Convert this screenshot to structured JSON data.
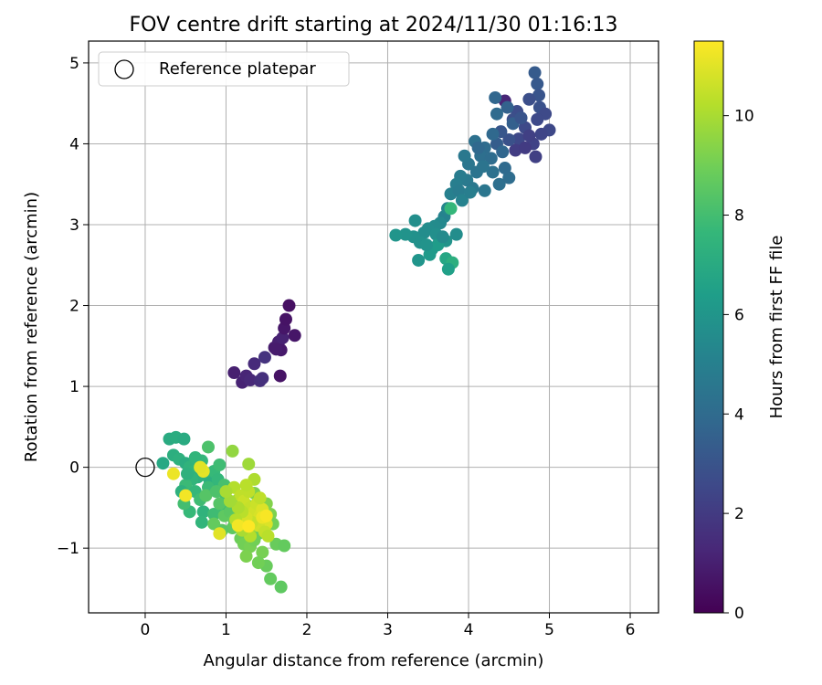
{
  "chart_data": {
    "type": "scatter",
    "title": "FOV centre drift starting at 2024/11/30 01:16:13",
    "xlabel": "Angular distance from reference (arcmin)",
    "ylabel": "Rotation from reference (arcmin)",
    "xlim": [
      -0.7,
      6.35
    ],
    "ylim": [
      -1.8,
      5.27
    ],
    "xticks": [
      "0",
      "1",
      "2",
      "3",
      "4",
      "5",
      "6"
    ],
    "yticks": [
      "−1",
      "0",
      "1",
      "2",
      "3",
      "4",
      "5"
    ],
    "grid": true,
    "legend": {
      "placement": "top-left",
      "entries": [
        "Reference platepar"
      ]
    },
    "reference_point": {
      "label": "Reference platepar",
      "x": 0,
      "y": 0
    },
    "colorbar": {
      "label": "Hours from first FF file",
      "colormap": "viridis",
      "range": [
        0,
        11.5
      ],
      "ticks": [
        "0",
        "2",
        "4",
        "6",
        "8",
        "10"
      ]
    },
    "series": [
      {
        "points": [
          [
            1.1,
            1.17
          ],
          [
            1.2,
            1.05
          ],
          [
            1.25,
            1.13
          ],
          [
            1.3,
            1.08
          ],
          [
            1.35,
            1.28
          ],
          [
            1.42,
            1.07
          ],
          [
            1.45,
            1.1
          ],
          [
            1.48,
            1.36
          ],
          [
            1.6,
            1.48
          ],
          [
            1.65,
            1.55
          ],
          [
            1.68,
            1.45
          ],
          [
            1.7,
            1.6
          ],
          [
            1.72,
            1.72
          ],
          [
            1.74,
            1.83
          ],
          [
            1.78,
            2.0
          ],
          [
            1.85,
            1.63
          ],
          [
            1.67,
            1.13
          ],
          [
            1.62,
            1.46
          ]
        ],
        "hours": [
          1.0,
          1.1,
          1.2,
          1.3,
          1.4,
          1.5,
          1.6,
          1.7,
          0.9,
          1.0,
          0.8,
          1.1,
          0.7,
          0.6,
          0.5,
          0.7,
          0.6,
          0.9
        ]
      },
      {
        "points": [
          [
            4.45,
            4.53
          ],
          [
            4.82,
            4.88
          ],
          [
            4.85,
            4.74
          ],
          [
            4.87,
            4.6
          ],
          [
            4.75,
            4.55
          ],
          [
            4.88,
            4.45
          ],
          [
            5.0,
            4.17
          ],
          [
            4.9,
            4.12
          ],
          [
            4.95,
            4.37
          ],
          [
            4.6,
            4.4
          ],
          [
            4.55,
            4.3
          ],
          [
            4.7,
            4.2
          ],
          [
            4.62,
            4.06
          ],
          [
            4.8,
            4.0
          ],
          [
            4.83,
            3.84
          ],
          [
            4.58,
            3.92
          ],
          [
            4.5,
            4.05
          ],
          [
            4.4,
            4.15
          ],
          [
            4.35,
            4.0
          ],
          [
            4.7,
            3.95
          ],
          [
            4.55,
            4.25
          ],
          [
            4.48,
            4.45
          ],
          [
            4.65,
            4.32
          ],
          [
            4.75,
            4.1
          ],
          [
            4.85,
            4.3
          ]
        ],
        "hours": [
          1.2,
          3.3,
          3.2,
          3.0,
          2.8,
          2.9,
          2.5,
          2.4,
          2.6,
          2.7,
          2.8,
          2.6,
          2.5,
          2.3,
          2.2,
          2.1,
          2.9,
          3.1,
          3.4,
          2.0,
          3.5,
          3.6,
          3.0,
          2.2,
          2.6
        ]
      },
      {
        "points": [
          [
            4.33,
            4.57
          ],
          [
            4.35,
            4.37
          ],
          [
            4.3,
            4.12
          ],
          [
            4.2,
            3.95
          ],
          [
            4.15,
            3.85
          ],
          [
            4.08,
            4.03
          ],
          [
            4.0,
            3.75
          ],
          [
            3.95,
            3.85
          ],
          [
            4.1,
            3.65
          ],
          [
            3.98,
            3.55
          ],
          [
            3.9,
            3.6
          ],
          [
            3.85,
            3.5
          ],
          [
            3.78,
            3.38
          ],
          [
            3.88,
            3.42
          ],
          [
            4.05,
            3.45
          ],
          [
            4.2,
            3.42
          ],
          [
            4.38,
            3.5
          ],
          [
            4.3,
            3.65
          ],
          [
            4.5,
            3.58
          ],
          [
            4.45,
            3.7
          ],
          [
            4.12,
            3.95
          ],
          [
            4.28,
            3.82
          ],
          [
            4.42,
            3.9
          ],
          [
            4.18,
            3.72
          ],
          [
            3.92,
            3.3
          ],
          [
            4.02,
            3.4
          ]
        ],
        "hours": [
          3.8,
          4.0,
          3.9,
          4.1,
          4.2,
          4.3,
          4.5,
          4.6,
          4.4,
          4.7,
          4.8,
          4.9,
          5.0,
          4.8,
          4.6,
          4.5,
          4.2,
          4.3,
          4.1,
          4.0,
          3.9,
          4.1,
          3.8,
          4.4,
          5.1,
          4.9
        ]
      },
      {
        "points": [
          [
            3.7,
            3.1
          ],
          [
            3.74,
            3.2
          ],
          [
            3.65,
            3.02
          ],
          [
            3.58,
            2.98
          ],
          [
            3.5,
            2.95
          ],
          [
            3.45,
            2.9
          ],
          [
            3.34,
            3.05
          ],
          [
            3.32,
            2.85
          ],
          [
            3.22,
            2.88
          ],
          [
            3.1,
            2.87
          ],
          [
            3.4,
            2.78
          ],
          [
            3.6,
            2.88
          ],
          [
            3.72,
            2.8
          ],
          [
            3.55,
            2.7
          ],
          [
            3.52,
            2.63
          ],
          [
            3.62,
            2.75
          ],
          [
            3.85,
            2.88
          ],
          [
            3.72,
            2.58
          ],
          [
            3.8,
            2.53
          ],
          [
            3.75,
            2.45
          ],
          [
            3.38,
            2.56
          ],
          [
            3.68,
            2.85
          ],
          [
            3.48,
            2.75
          ],
          [
            3.78,
            3.2
          ]
        ],
        "hours": [
          5.1,
          5.3,
          5.4,
          5.5,
          5.6,
          5.6,
          5.7,
          5.8,
          5.9,
          6.0,
          5.8,
          5.7,
          5.9,
          6.1,
          6.2,
          6.3,
          5.6,
          6.8,
          7.2,
          6.5,
          6.0,
          5.5,
          5.9,
          7.6
        ]
      },
      {
        "points": [
          [
            0.22,
            0.05
          ],
          [
            0.3,
            0.35
          ],
          [
            0.38,
            0.37
          ],
          [
            0.48,
            0.35
          ],
          [
            0.35,
            0.15
          ],
          [
            0.42,
            0.1
          ],
          [
            0.5,
            0.05
          ],
          [
            0.55,
            0.0
          ],
          [
            0.6,
            -0.05
          ],
          [
            0.65,
            -0.12
          ],
          [
            0.7,
            0.08
          ],
          [
            0.75,
            -0.1
          ],
          [
            0.8,
            -0.2
          ],
          [
            0.85,
            -0.05
          ],
          [
            0.58,
            -0.15
          ],
          [
            0.5,
            -0.22
          ],
          [
            0.45,
            -0.3
          ],
          [
            0.62,
            -0.3
          ],
          [
            0.68,
            -0.4
          ],
          [
            0.72,
            -0.55
          ],
          [
            0.55,
            -0.55
          ],
          [
            0.48,
            -0.45
          ],
          [
            0.7,
            -0.68
          ],
          [
            0.78,
            -0.25
          ],
          [
            0.9,
            -0.15
          ],
          [
            0.92,
            0.03
          ],
          [
            0.98,
            -0.22
          ],
          [
            1.0,
            -0.38
          ],
          [
            0.95,
            -0.5
          ],
          [
            0.85,
            -0.58
          ],
          [
            0.78,
            0.25
          ],
          [
            0.75,
            -0.35
          ],
          [
            0.62,
            0.12
          ],
          [
            0.52,
            -0.08
          ]
        ],
        "hours": [
          6.9,
          7.0,
          7.1,
          7.0,
          7.2,
          7.3,
          7.1,
          7.4,
          7.5,
          7.3,
          7.6,
          7.4,
          7.2,
          7.7,
          7.5,
          7.8,
          7.3,
          7.6,
          7.9,
          7.4,
          7.7,
          8.0,
          7.5,
          7.8,
          7.6,
          7.9,
          8.1,
          8.0,
          7.7,
          7.9,
          8.2,
          8.4,
          7.5,
          7.3
        ]
      },
      {
        "points": [
          [
            0.88,
            -0.3
          ],
          [
            0.92,
            -0.45
          ],
          [
            0.98,
            -0.6
          ],
          [
            1.05,
            -0.55
          ],
          [
            1.1,
            -0.65
          ],
          [
            1.15,
            -0.72
          ],
          [
            1.08,
            -0.75
          ],
          [
            1.18,
            -0.88
          ],
          [
            1.22,
            -0.95
          ],
          [
            1.3,
            -0.98
          ],
          [
            1.25,
            -1.1
          ],
          [
            1.35,
            -0.9
          ],
          [
            1.4,
            -0.82
          ],
          [
            1.45,
            -1.05
          ],
          [
            1.5,
            -1.22
          ],
          [
            1.55,
            -1.38
          ],
          [
            1.68,
            -1.48
          ],
          [
            1.62,
            -0.95
          ],
          [
            1.72,
            -0.97
          ],
          [
            1.55,
            -0.58
          ],
          [
            1.58,
            -0.7
          ],
          [
            1.5,
            -0.45
          ],
          [
            1.35,
            -0.32
          ],
          [
            1.28,
            -0.48
          ],
          [
            1.15,
            -0.4
          ],
          [
            0.95,
            -0.78
          ],
          [
            0.85,
            -0.7
          ],
          [
            1.4,
            -1.18
          ],
          [
            1.48,
            -0.75
          ]
        ],
        "hours": [
          8.2,
          8.4,
          8.6,
          8.5,
          8.7,
          8.8,
          8.6,
          8.9,
          9.0,
          9.1,
          9.2,
          9.0,
          8.9,
          9.1,
          8.8,
          8.7,
          8.6,
          8.8,
          8.7,
          9.2,
          9.0,
          9.3,
          9.2,
          8.9,
          9.1,
          8.5,
          8.7,
          9.0,
          9.3
        ]
      },
      {
        "points": [
          [
            1.1,
            -0.25
          ],
          [
            1.18,
            -0.35
          ],
          [
            1.22,
            -0.42
          ],
          [
            1.3,
            -0.5
          ],
          [
            1.35,
            -0.55
          ],
          [
            1.42,
            -0.6
          ],
          [
            1.45,
            -0.65
          ],
          [
            1.5,
            -0.7
          ],
          [
            1.4,
            -0.72
          ],
          [
            1.32,
            -0.68
          ],
          [
            1.25,
            -0.62
          ],
          [
            1.2,
            -0.55
          ],
          [
            1.15,
            -0.5
          ],
          [
            1.28,
            -0.3
          ],
          [
            1.38,
            -0.45
          ],
          [
            1.45,
            -0.52
          ],
          [
            1.48,
            -0.8
          ],
          [
            1.52,
            -0.85
          ],
          [
            1.3,
            -0.85
          ],
          [
            1.2,
            -0.78
          ],
          [
            1.28,
            0.04
          ],
          [
            1.35,
            -0.15
          ],
          [
            1.42,
            -0.38
          ],
          [
            1.12,
            -0.65
          ],
          [
            1.05,
            -0.42
          ],
          [
            1.0,
            -0.3
          ],
          [
            1.08,
            0.2
          ],
          [
            1.25,
            -0.22
          ]
        ],
        "hours": [
          10.2,
          10.4,
          10.6,
          10.5,
          10.7,
          10.8,
          10.6,
          10.9,
          10.7,
          10.5,
          10.8,
          10.3,
          10.1,
          10.4,
          10.6,
          10.9,
          10.5,
          10.3,
          10.2,
          10.0,
          9.8,
          10.1,
          10.4,
          10.2,
          9.9,
          10.0,
          9.6,
          10.3
        ]
      },
      {
        "points": [
          [
            0.35,
            -0.08
          ],
          [
            0.5,
            -0.35
          ],
          [
            0.7,
            -0.02
          ],
          [
            0.72,
            -0.05
          ],
          [
            0.92,
            -0.82
          ],
          [
            1.15,
            -0.72
          ],
          [
            1.28,
            -0.73
          ],
          [
            1.45,
            -0.62
          ],
          [
            0.68,
            0.0
          ],
          [
            1.5,
            -0.6
          ]
        ],
        "hours": [
          11.2,
          11.3,
          11.4,
          11.1,
          11.0,
          11.3,
          11.5,
          11.2,
          11.0,
          11.4
        ]
      }
    ]
  },
  "colors": {
    "viridis": [
      "#440154",
      "#482878",
      "#3e4989",
      "#31688e",
      "#26828e",
      "#1f9e89",
      "#35b779",
      "#6ece58",
      "#b5de2b",
      "#fde725"
    ],
    "reference_marker": "#000000",
    "grid": "#b0b0b0"
  }
}
